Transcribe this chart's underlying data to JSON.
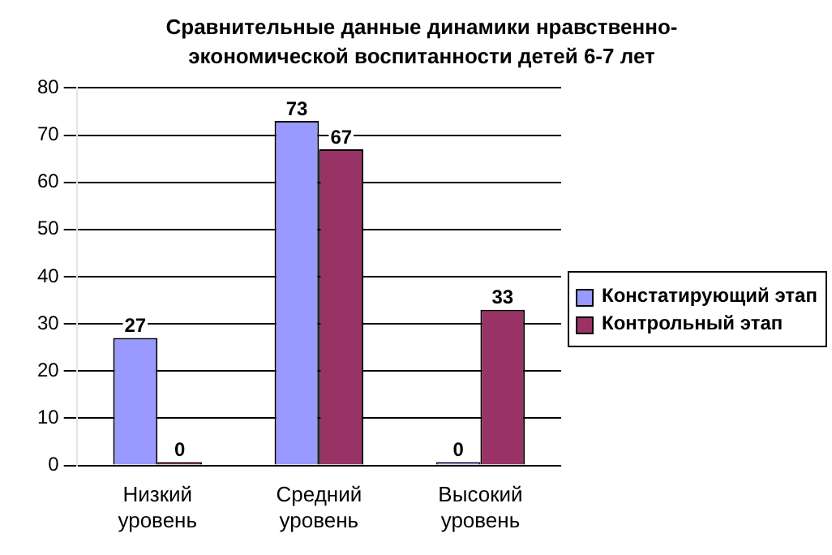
{
  "chart_data": {
    "type": "bar",
    "title": "Сравнительные данные динамики нравственно-экономической воспитанности детей 6-7 лет",
    "categories": [
      "Низкий уровень",
      "Средний уровень",
      "Высокий уровень"
    ],
    "series": [
      {
        "name": "Констатирующий этап",
        "color": "#9999ff",
        "values": [
          27,
          73,
          0
        ]
      },
      {
        "name": "Контрольный этап",
        "color": "#993366",
        "values": [
          0,
          67,
          33
        ]
      }
    ],
    "ylim": [
      0,
      80
    ],
    "yticks": [
      0,
      10,
      20,
      30,
      40,
      50,
      60,
      70,
      80
    ],
    "grid": "y",
    "legend": "right",
    "data_labels": true
  }
}
